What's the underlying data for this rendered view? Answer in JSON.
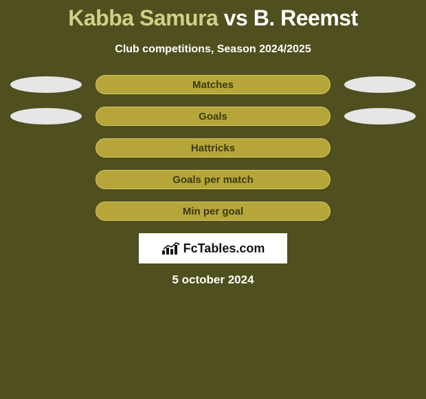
{
  "title": {
    "player1": "Kabba Samura",
    "vs": "vs",
    "player2": "B. Reemst",
    "player1_color": "#cfd186",
    "vs_color": "#ffffff",
    "player2_color": "#ffffff"
  },
  "subtitle": "Club competitions, Season 2024/2025",
  "background_color": "#4f4f1f",
  "rows": [
    {
      "label": "Matches",
      "left_visible": true,
      "right_visible": true,
      "left_color": "#e6e6e6",
      "right_color": "#e6e6e6",
      "bar_gradient_from": "#b6a63a",
      "bar_gradient_to": "#b6a63a",
      "bar_border": "#d6c860",
      "label_color": "#3c3a10"
    },
    {
      "label": "Goals",
      "left_visible": true,
      "right_visible": true,
      "left_color": "#e6e6e6",
      "right_color": "#e6e6e6",
      "bar_gradient_from": "#b6a63a",
      "bar_gradient_to": "#b6a63a",
      "bar_border": "#d6c860",
      "label_color": "#3c3a10"
    },
    {
      "label": "Hattricks",
      "left_visible": false,
      "right_visible": false,
      "left_color": "#e6e6e6",
      "right_color": "#e6e6e6",
      "bar_gradient_from": "#b6a63a",
      "bar_gradient_to": "#b6a63a",
      "bar_border": "#d6c860",
      "label_color": "#3c3a10"
    },
    {
      "label": "Goals per match",
      "left_visible": false,
      "right_visible": false,
      "left_color": "#e6e6e6",
      "right_color": "#e6e6e6",
      "bar_gradient_from": "#b6a63a",
      "bar_gradient_to": "#b6a63a",
      "bar_border": "#d6c860",
      "label_color": "#3c3a10"
    },
    {
      "label": "Min per goal",
      "left_visible": false,
      "right_visible": false,
      "left_color": "#e6e6e6",
      "right_color": "#e6e6e6",
      "bar_gradient_from": "#b6a63a",
      "bar_gradient_to": "#b6a63a",
      "bar_border": "#d6c860",
      "label_color": "#3c3a10"
    }
  ],
  "logo": {
    "text": "FcTables.com",
    "box_bg": "#ffffff",
    "text_color": "#111111",
    "icon_color": "#111111"
  },
  "date": "5 october 2024"
}
